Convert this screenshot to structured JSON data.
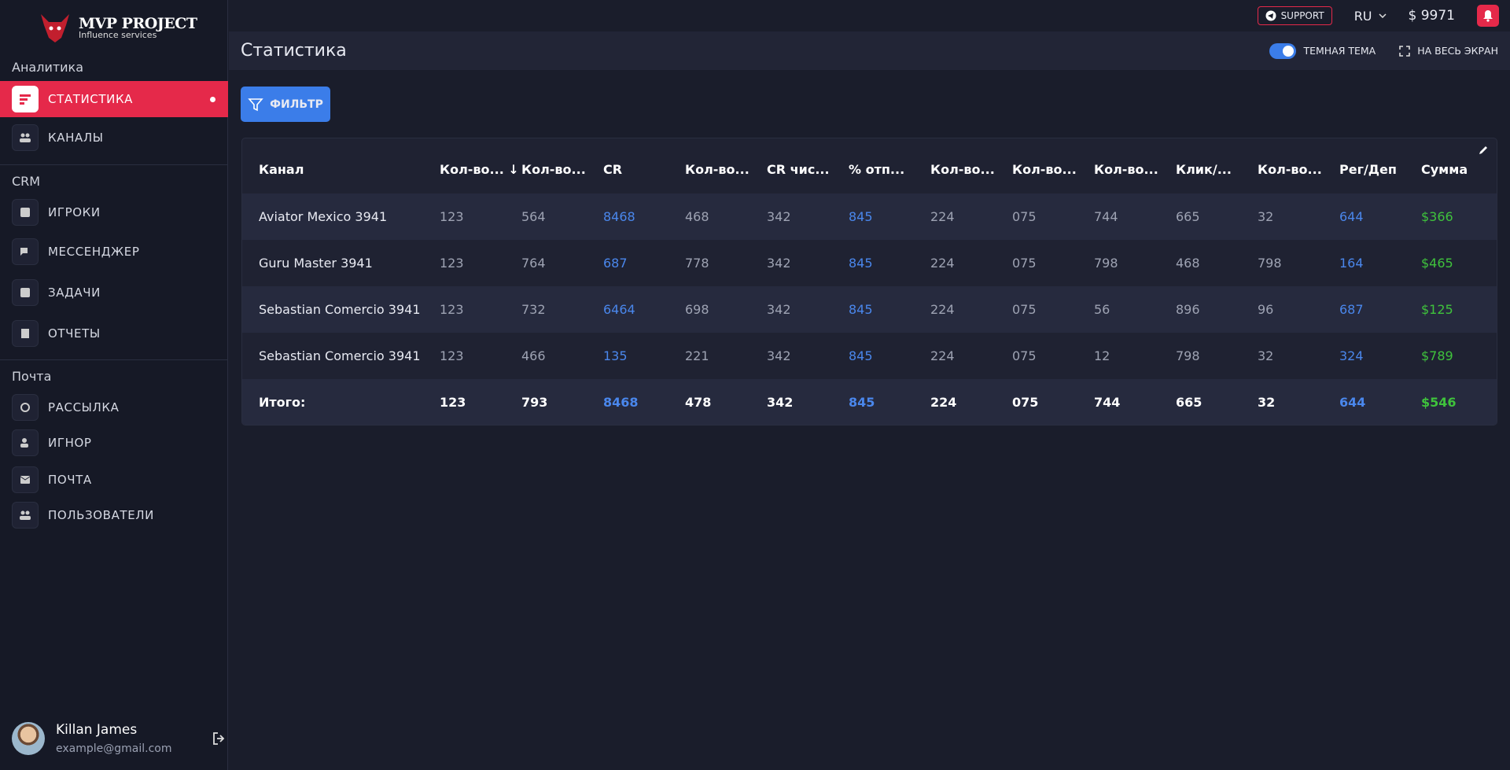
{
  "logo": {
    "title": "MVP PROJECT",
    "subtitle": "Influence services"
  },
  "nav": [
    {
      "title": "Аналитика",
      "items": [
        "СТАТИСТИКА",
        "КАНАЛЫ"
      ]
    },
    {
      "title": "CRM",
      "items": [
        "ИГРОКИ",
        "МЕССЕНДЖЕР",
        "ЗАДАЧИ",
        "ОТЧЕТЫ"
      ]
    },
    {
      "title": "Почта",
      "items": [
        "РАССЫЛКА",
        "ИГНОР",
        "ПОЧТА",
        "ПОЛЬЗОВАТЕЛИ"
      ]
    }
  ],
  "user": {
    "name": "Killan James",
    "email": "example@gmail.com"
  },
  "topbar": {
    "support": "SUPPORT",
    "language": "RU",
    "balance": "$ 9971"
  },
  "header": {
    "title": "Статистика",
    "theme": "ТЕМНАЯ ТЕМА",
    "fullscreen": "НА ВЕСЬ ЭКРАН"
  },
  "filter": "ФИЛЬТР",
  "table": {
    "columns": [
      "Канал",
      "Кол-во...",
      "Кол-во...",
      "CR",
      "Кол-во...",
      "CR чис...",
      "% отп...",
      "Кол-во...",
      "Кол-во...",
      "Кол-во...",
      "Клик/...",
      "Кол-во...",
      "Рег/Деп",
      "Сумма"
    ],
    "rows": [
      [
        "Aviator Mexico 3941",
        "123",
        "564",
        "8468",
        "468",
        "342",
        "845",
        "224",
        "075",
        "744",
        "665",
        "32",
        "644",
        "$366"
      ],
      [
        "Guru Master 3941",
        "123",
        "764",
        "687",
        "778",
        "342",
        "845",
        "224",
        "075",
        "798",
        "468",
        "798",
        "164",
        "$465"
      ],
      [
        "Sebastian Comercio 3941",
        "123",
        "732",
        "6464",
        "698",
        "342",
        "845",
        "224",
        "075",
        "56",
        "896",
        "96",
        "687",
        "$125"
      ],
      [
        "Sebastian Comercio 3941",
        "123",
        "466",
        "135",
        "221",
        "342",
        "845",
        "224",
        "075",
        "12",
        "798",
        "32",
        "324",
        "$789"
      ]
    ],
    "total": [
      "Итого:",
      "123",
      "793",
      "8468",
      "478",
      "342",
      "845",
      "224",
      "075",
      "744",
      "665",
      "32",
      "644",
      "$546"
    ]
  }
}
